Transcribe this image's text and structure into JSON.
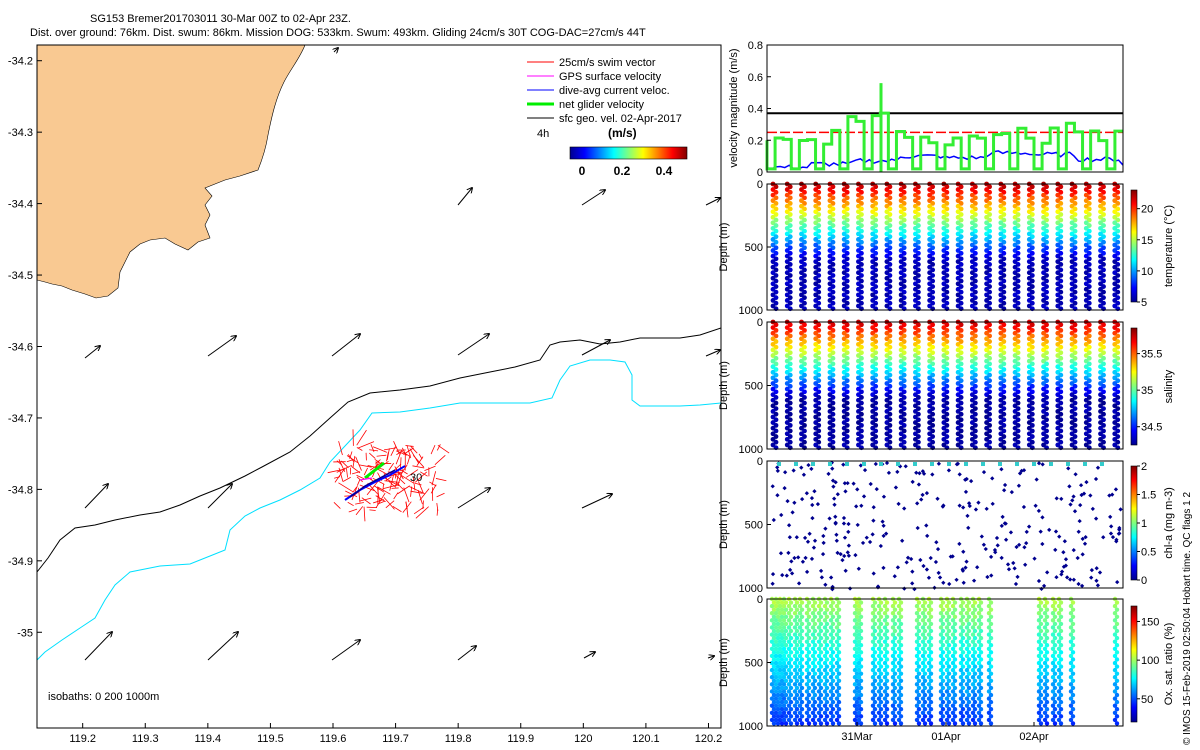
{
  "header": {
    "line1": "SG153 Bremer201703011 30-Mar 00Z to 02-Apr 23Z.",
    "line2": "Dist. over ground: 76km. Dist. swum: 86km. Mission DOG: 533km. Swum: 493km. Gliding 24cm/s 30T COG-DAC=27cm/s 44T"
  },
  "colors": {
    "land": "#f9c992",
    "isobath_200": "#000000",
    "isobath_1000": "#00e0ff",
    "swim": "#ff0000",
    "gps": "#ff00ff",
    "dac": "#0000ff",
    "net": "#00ee00",
    "sfc": "#000000"
  },
  "map": {
    "x_ticks": [
      119.2,
      119.3,
      119.4,
      119.5,
      119.6,
      119.7,
      119.8,
      119.9,
      120,
      120.1,
      120.2
    ],
    "x_tick_labels": [
      "119.2",
      "119.3",
      "119.4",
      "119.5",
      "119.6",
      "119.7",
      "119.8",
      "119.9",
      "120",
      "120.1",
      "120.2"
    ],
    "y_ticks": [
      -34.2,
      -34.3,
      -34.4,
      -34.5,
      -34.6,
      -34.7,
      -34.8,
      -34.9,
      -35
    ],
    "y_tick_labels": [
      "-34.2",
      "-34.3",
      "-34.4",
      "-34.5",
      "-34.6",
      "-34.7",
      "-34.8",
      "-34.9",
      "-35"
    ],
    "track_label": "30",
    "isobath_note": "isobaths: 0   200  1000m",
    "scale_label": "4h"
  },
  "legend": {
    "items": [
      {
        "label": "25cm/s swim vector",
        "color": "#ff0000"
      },
      {
        "label": "GPS surface velocity",
        "color": "#ff00ff"
      },
      {
        "label": "dive-avg current veloc.",
        "color": "#0000ff"
      },
      {
        "label": "net glider velocity",
        "color": "#00ee00"
      },
      {
        "label": "sfc geo. vel. 02-Apr-2017",
        "color": "#000000"
      }
    ],
    "colorbar_title": "(m/s)",
    "colorbar_ticks": [
      "0",
      "0.2",
      "0.4"
    ]
  },
  "chart_data": [
    {
      "type": "line",
      "title": "",
      "ylabel": "velocity magnitude (m/s)",
      "ylim": [
        0,
        0.8
      ],
      "y_ticks": [
        "0",
        "0.2",
        "0.4",
        "0.6",
        "0.8"
      ],
      "x": [
        0,
        0.5,
        1,
        1.5,
        2,
        2.5,
        3,
        3.5,
        4
      ],
      "series": [
        {
          "name": "sfc geo. vel.",
          "values": [
            0.37,
            0.37,
            0.37,
            0.37,
            0.37,
            0.37,
            0.37,
            0.37,
            0.37
          ]
        },
        {
          "name": "25cm/s swim vector",
          "values": [
            0.25,
            0.25,
            0.25,
            0.25,
            0.25,
            0.25,
            0.25,
            0.25,
            0.25
          ]
        },
        {
          "name": "dive-avg current veloc.",
          "values": [
            0.03,
            0.05,
            0.07,
            0.1,
            0.09,
            0.12,
            0.11,
            0.08,
            0.05
          ]
        },
        {
          "name": "net glider velocity",
          "values": [
            0.2,
            0.23,
            0.35,
            0.25,
            0.2,
            0.27,
            0.22,
            0.28,
            0.2
          ]
        }
      ]
    },
    {
      "type": "scatter",
      "ylabel": "Depth (m)",
      "ylim": [
        1000,
        0
      ],
      "y_ticks": [
        "0",
        "500",
        "1000"
      ],
      "colorbar_label": "temperature (°C)",
      "colorbar_ticks": [
        "5",
        "10",
        "15",
        "20"
      ],
      "dive_count": 25
    },
    {
      "type": "scatter",
      "ylabel": "Depth (m)",
      "ylim": [
        1000,
        0
      ],
      "y_ticks": [
        "0",
        "500",
        "1000"
      ],
      "colorbar_label": "salinity",
      "colorbar_ticks": [
        "34.5",
        "35",
        "35.5"
      ],
      "dive_count": 25
    },
    {
      "type": "scatter",
      "ylabel": "Depth (m)",
      "ylim": [
        1000,
        0
      ],
      "y_ticks": [
        "0",
        "500",
        "1000"
      ],
      "colorbar_label": "chl-a (mg m-3)",
      "colorbar_ticks": [
        "0",
        "0.5",
        "1",
        "1.5",
        "2"
      ]
    },
    {
      "type": "scatter",
      "ylabel": "Depth (m)",
      "ylim": [
        1000,
        0
      ],
      "y_ticks": [
        "0",
        "500",
        "1000"
      ],
      "colorbar_label": "Ox. sat. ratio (%)",
      "colorbar_ticks": [
        "50",
        "100",
        "150"
      ],
      "x_tick_labels": [
        "31Mar",
        "01Apr",
        "02Apr"
      ]
    }
  ],
  "footer": "© IMOS 15-Feb-2019 02:50:04 Hobart time. QC flags 1  2"
}
